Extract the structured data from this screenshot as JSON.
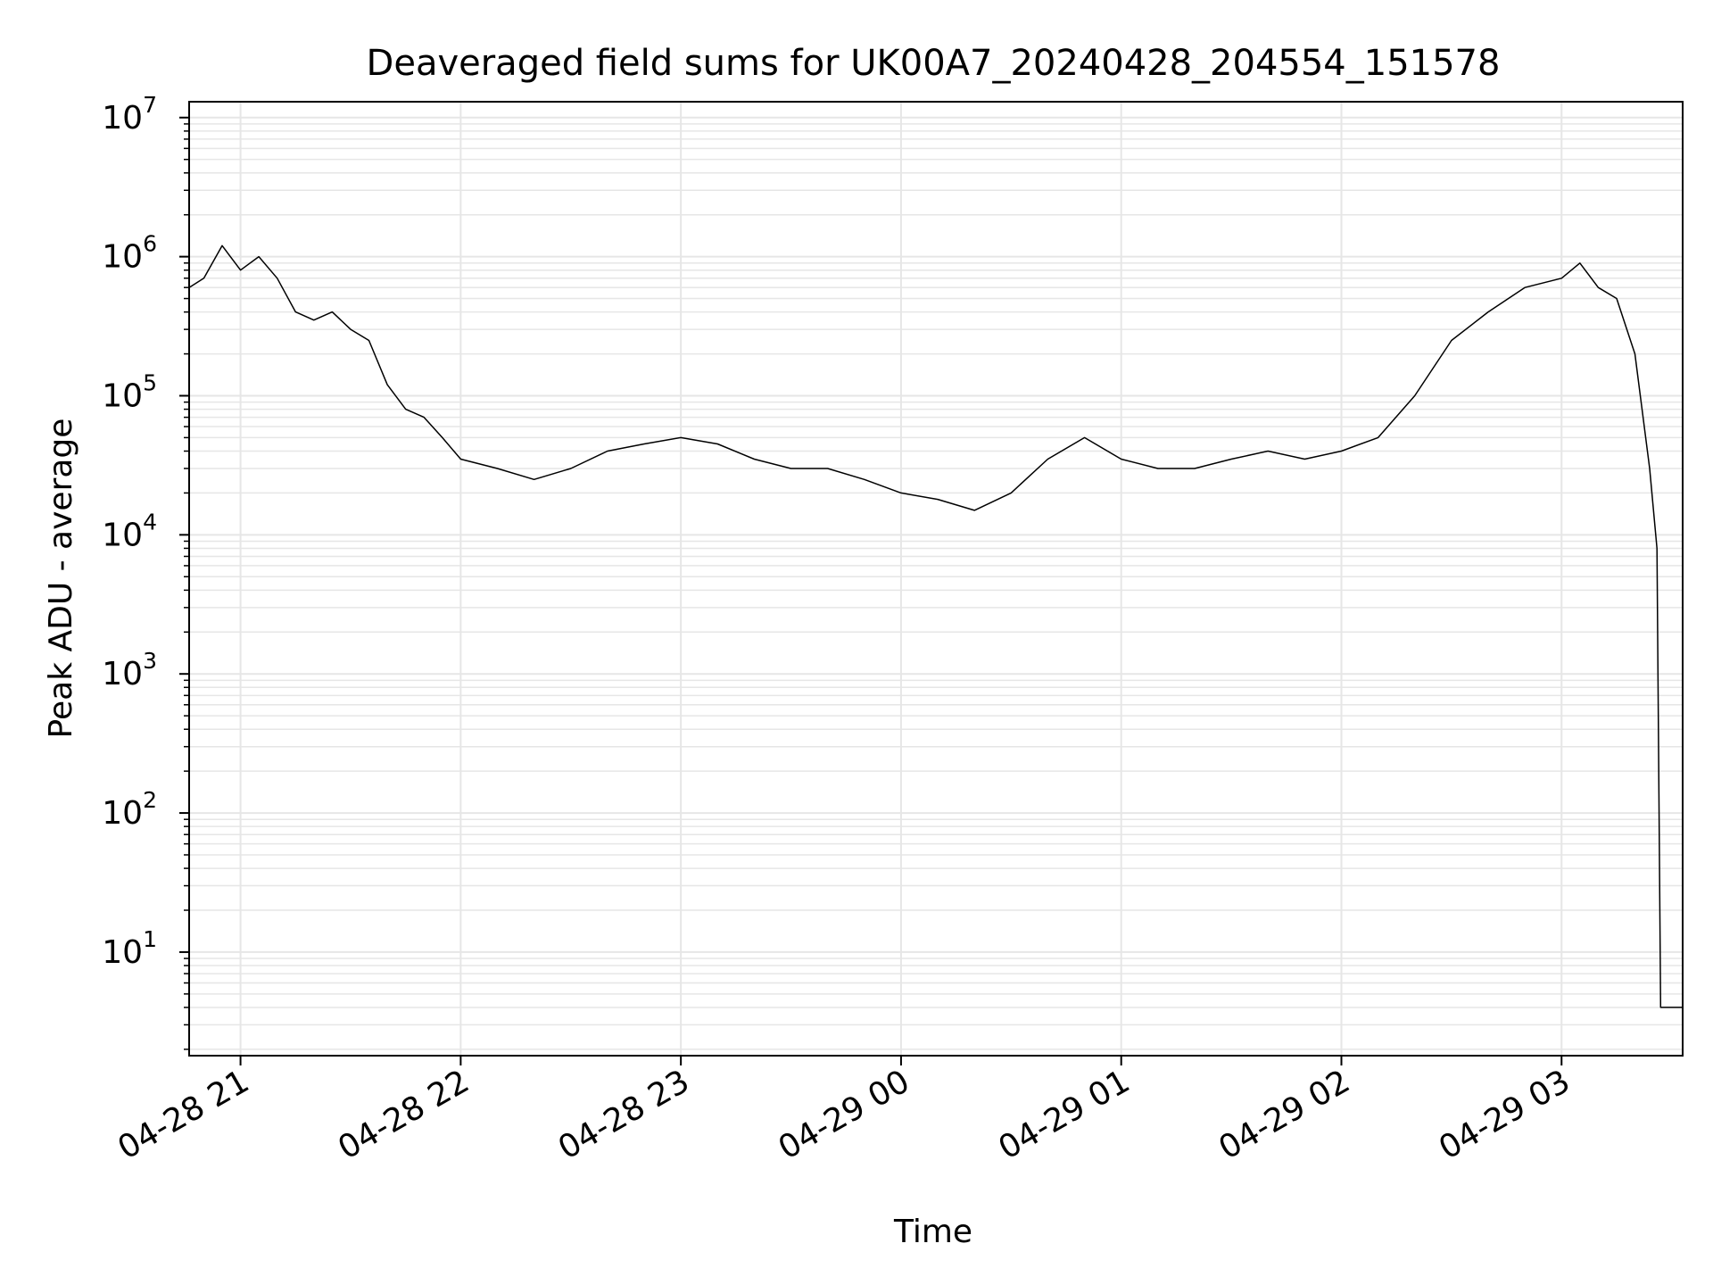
{
  "chart_data": {
    "type": "line",
    "title": "Deaveraged field sums for UK00A7_20240428_204554_151578",
    "xlabel": "Time",
    "ylabel": "Peak ADU - average",
    "yscale": "log",
    "ylim": [
      1.8,
      13000000
    ],
    "xlim": [
      "2024-04-28 20:46",
      "2024-04-29 03:33"
    ],
    "grid": true,
    "grid_color": "#e6e6e6",
    "line_color": "#000000",
    "x_ticks": [
      {
        "t": "2024-04-28 21:00",
        "label": "04-28 21"
      },
      {
        "t": "2024-04-28 22:00",
        "label": "04-28 22"
      },
      {
        "t": "2024-04-28 23:00",
        "label": "04-28 23"
      },
      {
        "t": "2024-04-29 00:00",
        "label": "04-29 00"
      },
      {
        "t": "2024-04-29 01:00",
        "label": "04-29 01"
      },
      {
        "t": "2024-04-29 02:00",
        "label": "04-29 02"
      },
      {
        "t": "2024-04-29 03:00",
        "label": "04-29 03"
      }
    ],
    "y_ticks": [
      {
        "value": 10,
        "base": "10",
        "exp": "1"
      },
      {
        "value": 100,
        "base": "10",
        "exp": "2"
      },
      {
        "value": 1000,
        "base": "10",
        "exp": "3"
      },
      {
        "value": 10000,
        "base": "10",
        "exp": "4"
      },
      {
        "value": 100000,
        "base": "10",
        "exp": "5"
      },
      {
        "value": 1000000,
        "base": "10",
        "exp": "6"
      },
      {
        "value": 10000000,
        "base": "10",
        "exp": "7"
      }
    ],
    "series": [
      {
        "x": [
          "2024-04-28 20:46",
          "2024-04-28 20:50",
          "2024-04-28 20:55",
          "2024-04-28 21:00",
          "2024-04-28 21:05",
          "2024-04-28 21:10",
          "2024-04-28 21:15",
          "2024-04-28 21:20",
          "2024-04-28 21:25",
          "2024-04-28 21:30",
          "2024-04-28 21:35",
          "2024-04-28 21:40",
          "2024-04-28 21:45",
          "2024-04-28 21:50",
          "2024-04-28 21:55",
          "2024-04-28 22:00",
          "2024-04-28 22:10",
          "2024-04-28 22:20",
          "2024-04-28 22:30",
          "2024-04-28 22:40",
          "2024-04-28 22:50",
          "2024-04-28 23:00",
          "2024-04-28 23:10",
          "2024-04-28 23:20",
          "2024-04-28 23:30",
          "2024-04-28 23:40",
          "2024-04-28 23:50",
          "2024-04-29 00:00",
          "2024-04-29 00:10",
          "2024-04-29 00:20",
          "2024-04-29 00:30",
          "2024-04-29 00:40",
          "2024-04-29 00:50",
          "2024-04-29 01:00",
          "2024-04-29 01:10",
          "2024-04-29 01:20",
          "2024-04-29 01:30",
          "2024-04-29 01:40",
          "2024-04-29 01:50",
          "2024-04-29 02:00",
          "2024-04-29 02:10",
          "2024-04-29 02:20",
          "2024-04-29 02:30",
          "2024-04-29 02:40",
          "2024-04-29 02:50",
          "2024-04-29 03:00",
          "2024-04-29 03:05",
          "2024-04-29 03:10",
          "2024-04-29 03:15",
          "2024-04-29 03:20",
          "2024-04-29 03:24",
          "2024-04-29 03:26",
          "2024-04-29 03:27",
          "2024-04-29 03:28",
          "2024-04-29 03:30",
          "2024-04-29 03:33"
        ],
        "y": [
          600000,
          700000,
          1200000,
          800000,
          1000000,
          700000,
          400000,
          350000,
          400000,
          300000,
          250000,
          120000,
          80000,
          70000,
          50000,
          35000,
          30000,
          25000,
          30000,
          40000,
          45000,
          50000,
          45000,
          35000,
          30000,
          30000,
          25000,
          20000,
          18000,
          15000,
          20000,
          35000,
          50000,
          35000,
          30000,
          30000,
          35000,
          40000,
          35000,
          40000,
          50000,
          100000,
          250000,
          400000,
          600000,
          700000,
          900000,
          600000,
          500000,
          200000,
          30000,
          8000,
          4,
          4,
          4,
          4
        ]
      }
    ]
  }
}
